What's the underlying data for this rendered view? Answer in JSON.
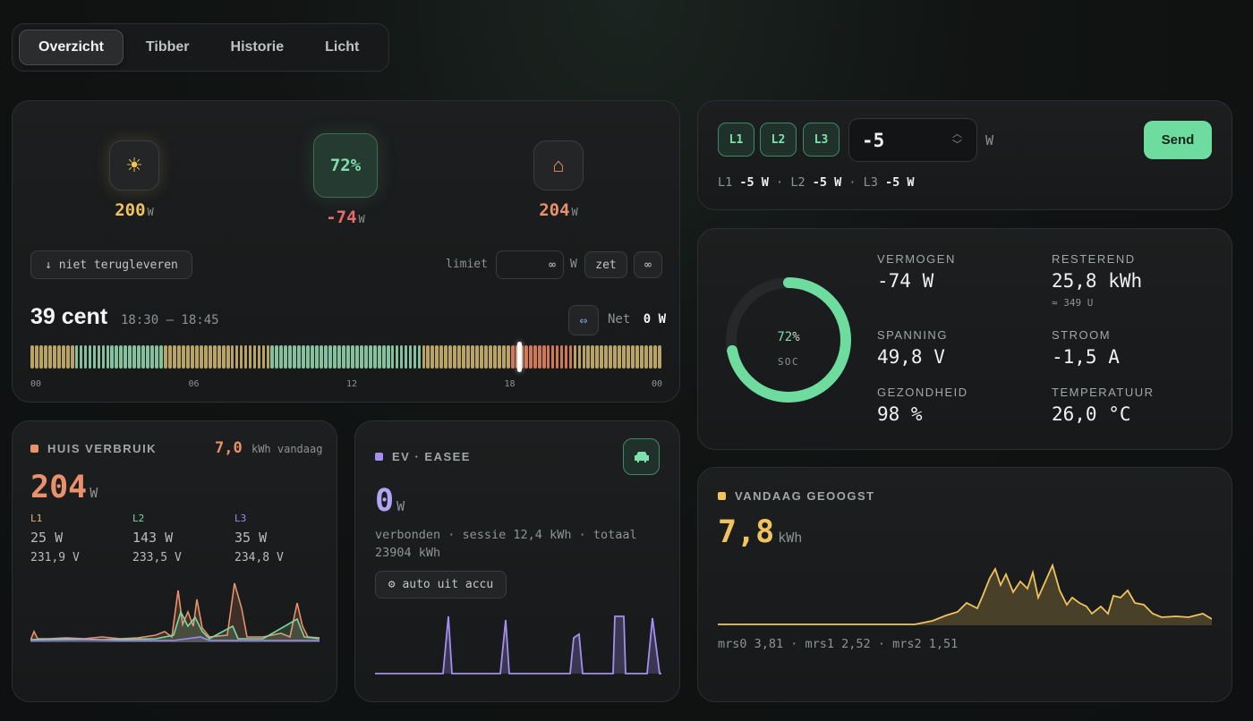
{
  "tabs": [
    {
      "label": "Overzicht",
      "active": true
    },
    {
      "label": "Tibber",
      "active": false
    },
    {
      "label": "Historie",
      "active": false
    },
    {
      "label": "Licht",
      "active": false
    }
  ],
  "flow": {
    "solar": {
      "icon": "sun-icon",
      "value": "200",
      "unit": "W"
    },
    "battery": {
      "soc": "72%",
      "value": "-74",
      "unit": "W"
    },
    "house": {
      "icon": "house-icon",
      "value": "204",
      "unit": "W"
    },
    "no_feed_button": "↓ niet terugleveren",
    "limit_label": "limiet",
    "limit_value": "∞",
    "limit_unit": "W",
    "set_button": "zet",
    "infinite_button": "∞",
    "price": "39 cent",
    "price_window": "18:30 – 18:45",
    "net_label": "Net",
    "net_value": "0 W",
    "hour_ticks": [
      "00",
      "06",
      "12",
      "18",
      "00"
    ],
    "price_levels": [
      "cheap",
      "cheap",
      "cheap",
      "cheap",
      "cheap",
      "cheap",
      "cheap",
      "cheap",
      "cheap",
      "cheap",
      "normal",
      "normal",
      "normal",
      "normal",
      "normal",
      "normal",
      "normal",
      "normal",
      "normal",
      "normal",
      "normal",
      "normal",
      "normal",
      "normal",
      "normal",
      "normal",
      "normal",
      "normal",
      "normal",
      "normal",
      "cheap",
      "cheap",
      "cheap",
      "cheap",
      "cheap",
      "cheap",
      "cheap",
      "cheap",
      "cheap",
      "cheap",
      "cheap",
      "cheap",
      "cheap",
      "cheap",
      "cheap",
      "cheap",
      "cheap",
      "cheap",
      "cheap",
      "cheap",
      "cheap",
      "cheap",
      "cheap",
      "cheap",
      "normal",
      "normal",
      "normal",
      "normal",
      "normal",
      "normal",
      "normal",
      "normal",
      "normal",
      "normal",
      "normal",
      "normal",
      "normal",
      "normal",
      "normal",
      "normal",
      "normal",
      "normal",
      "normal",
      "normal",
      "normal",
      "normal",
      "normal",
      "normal",
      "normal",
      "normal",
      "normal",
      "normal",
      "normal",
      "normal",
      "normal",
      "normal",
      "normal",
      "normal",
      "cheap",
      "cheap",
      "cheap",
      "cheap",
      "cheap",
      "cheap",
      "cheap",
      "cheap",
      "cheap",
      "cheap",
      "cheap",
      "cheap",
      "cheap",
      "cheap",
      "cheap",
      "cheap",
      "cheap",
      "cheap",
      "cheap",
      "cheap",
      "expensive",
      "expensive",
      "expensive",
      "expensive",
      "expensive",
      "expensive",
      "expensive",
      "expensive",
      "expensive",
      "expensive",
      "expensive",
      "expensive",
      "expensive",
      "expensive",
      "cheap",
      "cheap",
      "cheap",
      "cheap",
      "cheap",
      "cheap",
      "cheap",
      "cheap",
      "cheap",
      "cheap",
      "cheap",
      "cheap",
      "cheap",
      "cheap",
      "cheap",
      "cheap",
      "cheap",
      "cheap",
      "cheap",
      "cheap"
    ],
    "now_fraction": 0.773,
    "level_colors": {
      "cheap": "#c8b06a",
      "normal": "#8fcfa8",
      "low": "#6fd49a",
      "expensive": "#e0805c"
    }
  },
  "phase_control": {
    "phases": [
      "L1",
      "L2",
      "L3"
    ],
    "value": "-5",
    "unit": "W",
    "send_label": "Send",
    "readout": [
      {
        "phase": "L1",
        "value": "-5 W"
      },
      {
        "phase": "L2",
        "value": "-5 W"
      },
      {
        "phase": "L3",
        "value": "-5 W"
      }
    ]
  },
  "battery": {
    "soc_value": "72",
    "soc_unit": "%",
    "soc_label": "SOC",
    "soc_fraction": 0.72,
    "stats": [
      {
        "label": "VERMOGEN",
        "value": "-74 W",
        "sub": ""
      },
      {
        "label": "RESTEREND",
        "value": "25,8 kWh",
        "sub": "≈ 349 U"
      },
      {
        "label": "SPANNING",
        "value": "49,8 V",
        "sub": ""
      },
      {
        "label": "STROOM",
        "value": "-1,5 A",
        "sub": ""
      },
      {
        "label": "GEZONDHEID",
        "value": "98 %",
        "sub": ""
      },
      {
        "label": "TEMPERATUUR",
        "value": "26,0 °C",
        "sub": ""
      }
    ]
  },
  "house": {
    "title": "HUIS VERBRUIK",
    "today_value": "7,0",
    "today_unit": "kWh vandaag",
    "power": "204",
    "power_unit": "W",
    "phases": [
      {
        "name": "L1",
        "power": "25 W",
        "voltage": "231,9 V",
        "color": "#e8b66a"
      },
      {
        "name": "L2",
        "power": "143 W",
        "voltage": "233,5 V",
        "color": "#7ed6a2"
      },
      {
        "name": "L3",
        "power": "35 W",
        "voltage": "234,8 V",
        "color": "#9c8cf0"
      }
    ]
  },
  "ev": {
    "title": "EV · EASEE",
    "power": "0",
    "power_unit": "W",
    "status": "verbonden · sessie 12,4 kWh · totaal 23904 kWh",
    "auto_button": "⚙ auto uit accu"
  },
  "harvest": {
    "title": "VANDAAG GEOOGST",
    "value": "7,8",
    "unit": "kWh",
    "footer": "mrs0 3,81 · mrs1 2,52 · mrs2 1,51"
  },
  "colors": {
    "green": "#6fdc9f",
    "orange": "#e8916a",
    "yellow": "#f0c35c",
    "purple": "#a48ef0",
    "red": "#e96a6a"
  }
}
